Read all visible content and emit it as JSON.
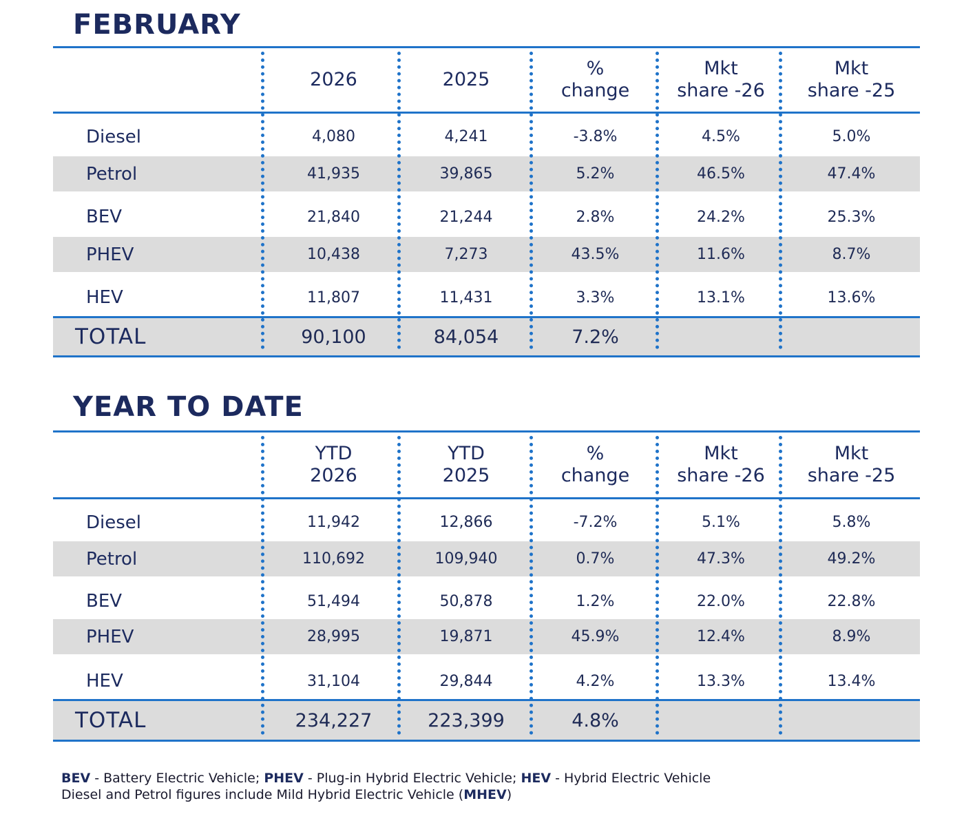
{
  "feb": {
    "title": "FEBRUARY",
    "headers": [
      {
        "line1": "",
        "line2": "2026"
      },
      {
        "line1": "",
        "line2": "2025"
      },
      {
        "line1": "%",
        "line2": "change"
      },
      {
        "line1": "Mkt",
        "line2": "share -26"
      },
      {
        "line1": "Mkt",
        "line2": "share -25"
      }
    ],
    "rows": [
      {
        "label": "Diesel",
        "v2026": "4,080",
        "v2025": "4,241",
        "change": "-3.8%",
        "share26": "4.5%",
        "share25": "5.0%"
      },
      {
        "label": "Petrol",
        "v2026": "41,935",
        "v2025": "39,865",
        "change": "5.2%",
        "share26": "46.5%",
        "share25": "47.4%"
      },
      {
        "label": "BEV",
        "v2026": "21,840",
        "v2025": "21,244",
        "change": "2.8%",
        "share26": "24.2%",
        "share25": "25.3%"
      },
      {
        "label": "PHEV",
        "v2026": "10,438",
        "v2025": "7,273",
        "change": "43.5%",
        "share26": "11.6%",
        "share25": "8.7%"
      },
      {
        "label": "HEV",
        "v2026": "11,807",
        "v2025": "11,431",
        "change": "3.3%",
        "share26": "13.1%",
        "share25": "13.6%"
      }
    ],
    "total": {
      "label": "TOTAL",
      "v2026": "90,100",
      "v2025": "84,054",
      "change": "7.2%"
    }
  },
  "ytd": {
    "title": "YEAR TO DATE",
    "headers": [
      {
        "line1": "YTD",
        "line2": "2026"
      },
      {
        "line1": "YTD",
        "line2": "2025"
      },
      {
        "line1": "%",
        "line2": "change"
      },
      {
        "line1": "Mkt",
        "line2": "share -26"
      },
      {
        "line1": "Mkt",
        "line2": "share -25"
      }
    ],
    "rows": [
      {
        "label": "Diesel",
        "v2026": "11,942",
        "v2025": "12,866",
        "change": "-7.2%",
        "share26": "5.1%",
        "share25": "5.8%"
      },
      {
        "label": "Petrol",
        "v2026": "110,692",
        "v2025": "109,940",
        "change": "0.7%",
        "share26": "47.3%",
        "share25": "49.2%"
      },
      {
        "label": "BEV",
        "v2026": "51,494",
        "v2025": "50,878",
        "change": "1.2%",
        "share26": "22.0%",
        "share25": "22.8%"
      },
      {
        "label": "PHEV",
        "v2026": "28,995",
        "v2025": "19,871",
        "change": "45.9%",
        "share26": "12.4%",
        "share25": "8.9%"
      },
      {
        "label": "HEV",
        "v2026": "31,104",
        "v2025": "29,844",
        "change": "4.2%",
        "share26": "13.3%",
        "share25": "13.4%"
      }
    ],
    "total": {
      "label": "TOTAL",
      "v2026": "234,227",
      "v2025": "223,399",
      "change": "4.8%"
    }
  },
  "footnote": {
    "bev_abbr": "BEV",
    "bev_text": " - Battery Electric Vehicle; ",
    "phev_abbr": "PHEV",
    "phev_text": " - Plug-in Hybrid Electric Vehicle; ",
    "hev_abbr": "HEV",
    "hev_text": " - Hybrid Electric Vehicle",
    "line2_text": "Diesel and Petrol figures include Mild Hybrid Electric Vehicle (",
    "mhev_abbr": "MHEV",
    "line2_end": ")"
  }
}
